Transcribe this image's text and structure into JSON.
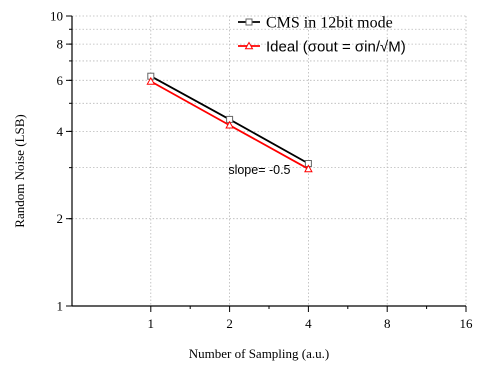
{
  "chart_data": {
    "type": "line",
    "x_scale": "log2",
    "y_scale": "log10",
    "xlim": [
      0.5,
      16
    ],
    "ylim": [
      1,
      10
    ],
    "x_ticks": [
      {
        "value": 1,
        "label": "1"
      },
      {
        "value": 2,
        "label": "2"
      },
      {
        "value": 4,
        "label": "4"
      },
      {
        "value": 8,
        "label": "8"
      },
      {
        "value": 16,
        "label": "16"
      }
    ],
    "y_ticks": [
      {
        "value": 1,
        "label": "1"
      },
      {
        "value": 2,
        "label": "2"
      },
      {
        "value": 4,
        "label": "4"
      },
      {
        "value": 6,
        "label": "6"
      },
      {
        "value": 8,
        "label": "8"
      },
      {
        "value": 10,
        "label": "10"
      }
    ],
    "grid": true,
    "xlabel": "Number of Sampling (a.u.)",
    "ylabel": "Random Noise (LSB)",
    "legend_position": "top-right",
    "series": [
      {
        "name": "CMS in 12bit mode",
        "color": "#000000",
        "marker": "square",
        "x": [
          1,
          2,
          4
        ],
        "y": [
          6.2,
          4.4,
          3.1
        ]
      },
      {
        "name": "Ideal",
        "name_math": "(σout = σin/√M)",
        "color": "#ff0000",
        "marker": "triangle",
        "x": [
          1,
          2,
          4
        ],
        "y": [
          5.95,
          4.2,
          2.97
        ]
      }
    ],
    "annotations": [
      {
        "text": "slope= -0.5",
        "near_x": 2.6,
        "near_y": 2.85
      }
    ]
  }
}
